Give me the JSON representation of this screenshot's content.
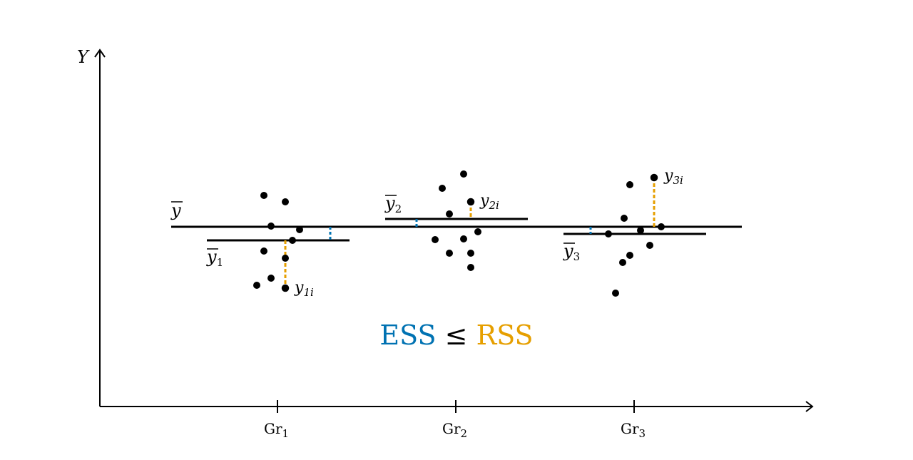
{
  "axis": {
    "y_label": "Y"
  },
  "overall_mean": {
    "label": "y"
  },
  "groups": [
    {
      "tick": "Gr",
      "tick_sub": "1",
      "mean_label": "y",
      "mean_sub": "1",
      "point_label": "y",
      "point_sub": "1i"
    },
    {
      "tick": "Gr",
      "tick_sub": "2",
      "mean_label": "y",
      "mean_sub": "2",
      "point_label": "y",
      "point_sub": "2i"
    },
    {
      "tick": "Gr",
      "tick_sub": "3",
      "mean_label": "y",
      "mean_sub": "3",
      "point_label": "y",
      "point_sub": "3i"
    }
  ],
  "formula": {
    "ess": "ESS",
    "op": "≤",
    "rss": "RSS"
  },
  "colors": {
    "ess": "#0072B2",
    "rss": "#E69F00",
    "ink": "#000000"
  }
}
